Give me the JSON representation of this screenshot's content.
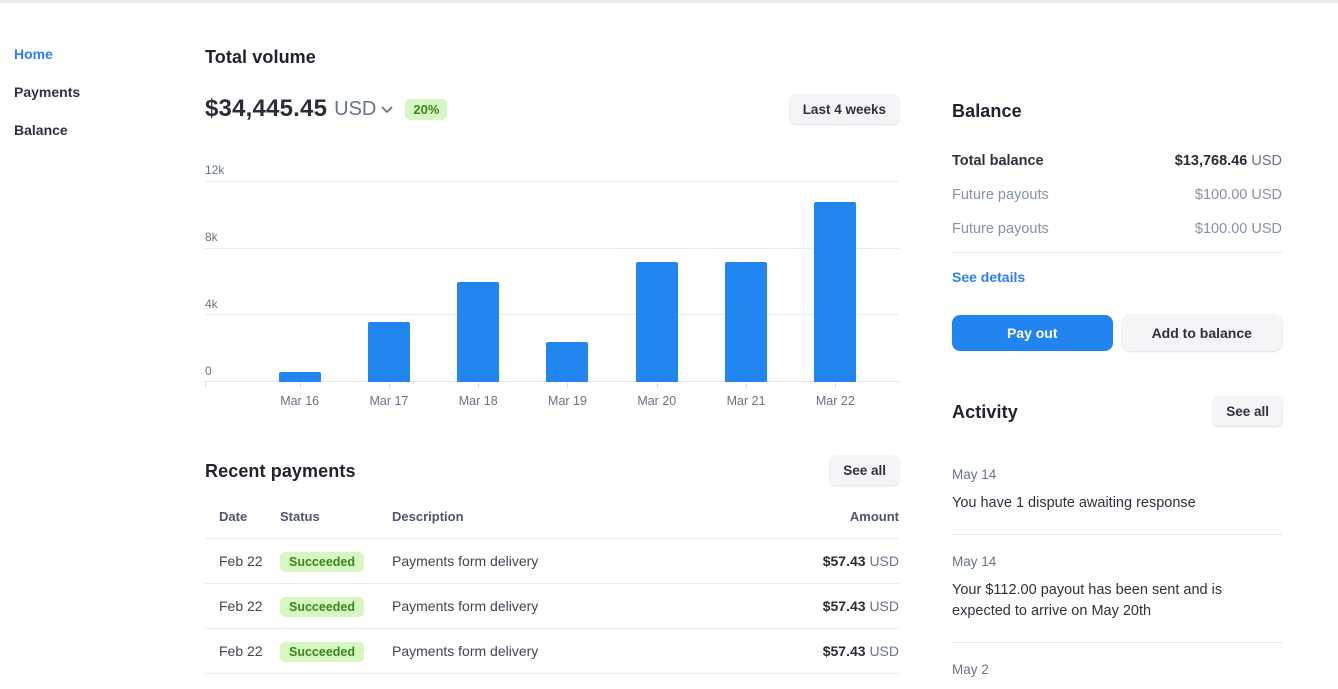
{
  "colors": {
    "accent_blue": "#2186f0",
    "link_blue": "#2e7ff2",
    "badge_green_bg": "#d7f7c2",
    "badge_green_text": "#3e8420",
    "text_dark": "#30313d",
    "text_gray": "#697386"
  },
  "sidebar": {
    "items": [
      {
        "label": "Home",
        "active": true
      },
      {
        "label": "Payments",
        "active": false
      },
      {
        "label": "Balance",
        "active": false
      }
    ]
  },
  "main": {
    "total_volume": {
      "title": "Total volume",
      "amount": "$34,445.45",
      "currency": "USD",
      "change_badge": "20%",
      "range_button": "Last 4 weeks"
    },
    "recent_payments": {
      "title": "Recent payments",
      "see_all": "See all",
      "columns": [
        "Date",
        "Status",
        "Description",
        "Amount"
      ],
      "rows": [
        {
          "date": "Feb 22",
          "status": "Succeeded",
          "description": "Payments form delivery",
          "amount": "$57.43",
          "currency": "USD"
        },
        {
          "date": "Feb 22",
          "status": "Succeeded",
          "description": "Payments form delivery",
          "amount": "$57.43",
          "currency": "USD"
        },
        {
          "date": "Feb 22",
          "status": "Succeeded",
          "description": "Payments form delivery",
          "amount": "$57.43",
          "currency": "USD"
        }
      ]
    }
  },
  "chart_data": {
    "type": "bar",
    "title": "Total volume",
    "categories": [
      "Mar 16",
      "Mar 17",
      "Mar 18",
      "Mar 19",
      "Mar 20",
      "Mar 21",
      "Mar 22"
    ],
    "values": [
      600,
      3600,
      6000,
      2400,
      7200,
      7200,
      10800
    ],
    "xlabel": "",
    "ylabel": "",
    "ylim": [
      0,
      12000
    ],
    "ytick_labels": [
      "0",
      "4k",
      "8k",
      "12k"
    ],
    "grid": true,
    "legend": false,
    "bar_color": "#2186f0"
  },
  "balance": {
    "title": "Balance",
    "rows": [
      {
        "label": "Total balance",
        "value": "$13,768.46",
        "currency": "USD",
        "muted": false
      },
      {
        "label": "Future payouts",
        "value": "$100.00",
        "currency": "USD",
        "muted": true
      },
      {
        "label": "Future payouts",
        "value": "$100.00",
        "currency": "USD",
        "muted": true
      }
    ],
    "see_details": "See details",
    "pay_out": "Pay out",
    "add_to_balance": "Add to balance"
  },
  "activity": {
    "title": "Activity",
    "see_all": "See all",
    "items": [
      {
        "date": "May 14",
        "message": "You have 1 dispute awaiting response"
      },
      {
        "date": "May 14",
        "message": "Your $112.00 payout has been sent and is expected to arrive on May 20th"
      },
      {
        "date": "May 2"
      }
    ]
  }
}
